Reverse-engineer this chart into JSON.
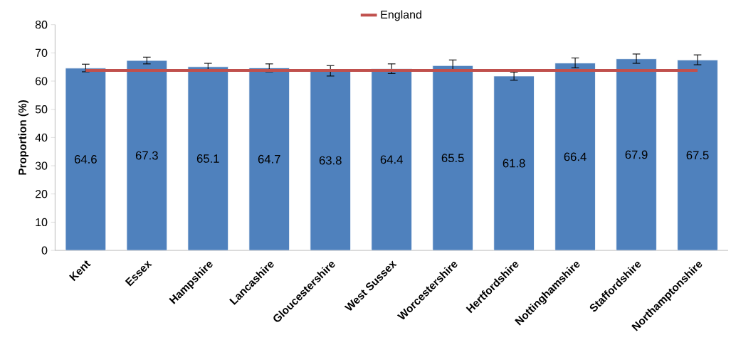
{
  "chart_data": {
    "type": "bar",
    "ylabel": "Proportion (%)",
    "categories": [
      "Kent",
      "Essex",
      "Hampshire",
      "Lancashire",
      "Gloucestershire",
      "West Sussex",
      "Worcestershire",
      "Hertfordshire",
      "Nottinghamshire",
      "Staffordshire",
      "Northamptonshire"
    ],
    "series": [
      {
        "color": "#4f81bd",
        "values": [
          64.6,
          67.3,
          65.1,
          64.7,
          63.8,
          64.4,
          65.5,
          61.8,
          66.4,
          67.9,
          67.5
        ],
        "value_labels": [
          "64.6",
          "67.3",
          "65.1",
          "64.7",
          "63.8",
          "64.4",
          "65.5",
          "61.8",
          "66.4",
          "67.9",
          "67.5"
        ],
        "errors": [
          [
            63.3,
            66.0
          ],
          [
            66.1,
            68.5
          ],
          [
            64.0,
            66.3
          ],
          [
            63.3,
            66.1
          ],
          [
            61.8,
            65.5
          ],
          [
            62.7,
            66.1
          ],
          [
            63.5,
            67.5
          ],
          [
            60.3,
            63.2
          ],
          [
            64.7,
            68.2
          ],
          [
            66.3,
            69.6
          ],
          [
            65.8,
            69.3
          ]
        ]
      },
      {
        "type": "line",
        "name": "England",
        "color": "#c0504d",
        "values": [
          63.8,
          63.8,
          63.8,
          63.8,
          63.8,
          63.8,
          63.8,
          63.8,
          63.8,
          63.8,
          63.8
        ]
      }
    ],
    "ylim": [
      0,
      80
    ],
    "yticks": [
      0,
      10,
      20,
      30,
      40,
      50,
      60,
      70,
      80
    ],
    "legend": "top",
    "grid": false
  }
}
